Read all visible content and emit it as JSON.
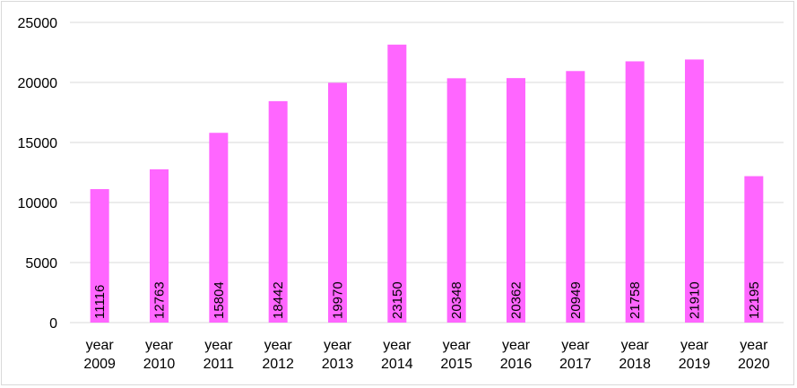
{
  "chart_data": {
    "type": "bar",
    "categories": [
      [
        "year",
        "2009"
      ],
      [
        "year",
        "2010"
      ],
      [
        "year",
        "2011"
      ],
      [
        "year",
        "2012"
      ],
      [
        "year",
        "2013"
      ],
      [
        "year",
        "2014"
      ],
      [
        "year",
        "2015"
      ],
      [
        "year",
        "2016"
      ],
      [
        "year",
        "2017"
      ],
      [
        "year",
        "2018"
      ],
      [
        "year",
        "2019"
      ],
      [
        "year",
        "2020"
      ]
    ],
    "values": [
      11116,
      12763,
      15804,
      18442,
      19970,
      23150,
      20348,
      20362,
      20949,
      21758,
      21910,
      12195
    ],
    "ylim": [
      0,
      25000
    ],
    "yticks": [
      0,
      5000,
      10000,
      15000,
      20000,
      25000
    ],
    "grid": true,
    "legend": "none",
    "data_labels": "inside-base-rotated",
    "colors": {
      "bar": "#ff66ff",
      "grid": "#d9d9d9",
      "axis": "#d9d9d9",
      "text": "#000000"
    }
  }
}
